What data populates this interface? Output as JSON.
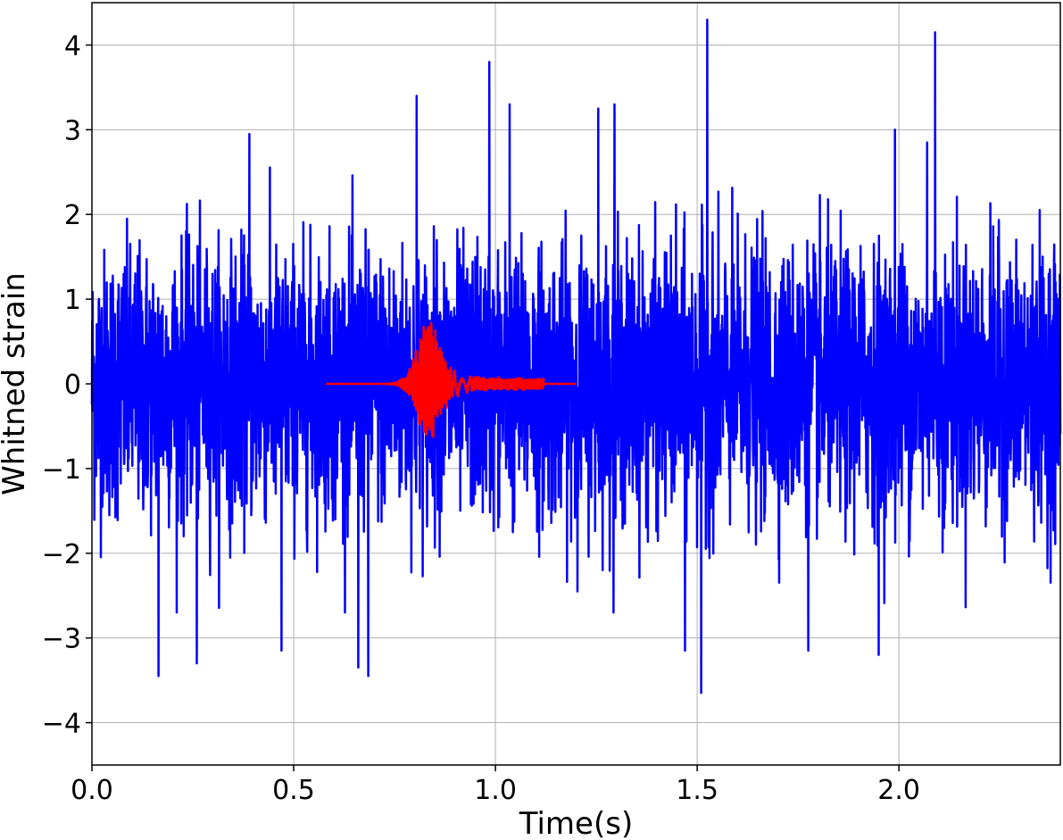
{
  "chart_data": {
    "type": "line",
    "title": "",
    "xlabel": "Time(s)",
    "ylabel": "Whitned strain",
    "xlim": [
      0,
      2.4
    ],
    "ylim": [
      -4.5,
      4.5
    ],
    "grid": true,
    "x_ticks": [
      0.0,
      0.5,
      1.0,
      1.5,
      2.0
    ],
    "x_tick_labels": [
      "0.0",
      "0.5",
      "1.0",
      "1.5",
      "2.0"
    ],
    "y_ticks": [
      -4,
      -3,
      -2,
      -1,
      0,
      1,
      2,
      3,
      4
    ],
    "y_tick_labels": [
      "−4",
      "−3",
      "−2",
      "−1",
      "0",
      "1",
      "2",
      "3",
      "4"
    ],
    "series": [
      {
        "color": "#0000ff",
        "style": "noise",
        "x_range": [
          0.0,
          2.4
        ],
        "typical_range": [
          -1.8,
          1.9
        ],
        "extremes": [
          {
            "x": 0.165,
            "y": 3.0
          },
          {
            "x": 0.165,
            "y": -3.45
          },
          {
            "x": 0.26,
            "y": -3.3
          },
          {
            "x": 0.39,
            "y": 2.95
          },
          {
            "x": 0.47,
            "y": -3.15
          },
          {
            "x": 0.66,
            "y": -3.35
          },
          {
            "x": 0.685,
            "y": -3.45
          },
          {
            "x": 0.805,
            "y": 3.4
          },
          {
            "x": 0.985,
            "y": 3.8
          },
          {
            "x": 1.035,
            "y": 3.3
          },
          {
            "x": 1.255,
            "y": 3.25
          },
          {
            "x": 1.295,
            "y": 3.3
          },
          {
            "x": 1.47,
            "y": 3.3
          },
          {
            "x": 1.47,
            "y": -3.15
          },
          {
            "x": 1.51,
            "y": -3.65
          },
          {
            "x": 1.525,
            "y": 4.3
          },
          {
            "x": 1.99,
            "y": 3.0
          },
          {
            "x": 2.09,
            "y": 4.15
          },
          {
            "x": 2.07,
            "y": 2.85
          },
          {
            "x": 1.95,
            "y": -3.2
          },
          {
            "x": 1.775,
            "y": -3.15
          }
        ]
      },
      {
        "color": "#ff0000",
        "style": "waveform",
        "x_range": [
          0.58,
          1.2
        ],
        "flat_value": 0,
        "burst_center": 0.84,
        "max_amplitude": 0.55,
        "min_amplitude": -0.75,
        "ringdown_end": 1.12
      }
    ]
  }
}
